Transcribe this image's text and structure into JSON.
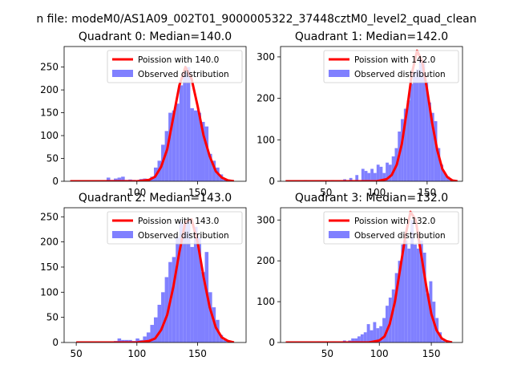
{
  "suptitle": "n file: modeM0/AS1A09_002T01_9000005322_37448cztM0_level2_quad_clean",
  "colors": {
    "poisson": "#ff0000",
    "observed": "#8080ff"
  },
  "chart_data": [
    {
      "type": "bar",
      "title": "Quadrant 0: Median=140.0",
      "xlim": [
        40,
        190
      ],
      "ylim": [
        0,
        295
      ],
      "xticks": [
        100,
        150
      ],
      "yticks": [
        0,
        50,
        100,
        150,
        200,
        250
      ],
      "legend_position": "top-right",
      "series": [
        {
          "name": "Poission with 140.0",
          "kind": "line",
          "mean": 140,
          "x": [
            45,
            100,
            110,
            115,
            120,
            125,
            130,
            135,
            140,
            145,
            150,
            155,
            160,
            165,
            170,
            175,
            180
          ],
          "y": [
            0,
            0,
            3,
            10,
            32,
            70,
            140,
            210,
            250,
            225,
            165,
            100,
            55,
            22,
            8,
            2,
            0
          ]
        },
        {
          "name": "Observed distribution",
          "kind": "hist",
          "bin_width": 3,
          "x": [
            63,
            66,
            75,
            78,
            81,
            84,
            87,
            90,
            93,
            96,
            99,
            102,
            105,
            108,
            111,
            114,
            117,
            120,
            123,
            126,
            129,
            132,
            135,
            138,
            141,
            144,
            147,
            150,
            153,
            156,
            159,
            162,
            165,
            168,
            171,
            174
          ],
          "y": [
            2,
            2,
            8,
            3,
            6,
            8,
            10,
            3,
            4,
            3,
            2,
            5,
            6,
            4,
            10,
            30,
            45,
            80,
            110,
            150,
            155,
            170,
            210,
            240,
            250,
            160,
            155,
            150,
            130,
            120,
            60,
            45,
            30,
            15,
            5,
            2
          ]
        }
      ]
    },
    {
      "type": "bar",
      "title": "Quadrant 1: Median=142.0",
      "xlim": [
        5,
        185
      ],
      "ylim": [
        0,
        325
      ],
      "xticks": [
        50,
        100,
        150
      ],
      "yticks": [
        0,
        100,
        200,
        300
      ],
      "legend_position": "top-right",
      "series": [
        {
          "name": "Poission with 142.0",
          "kind": "line",
          "mean": 142,
          "x": [
            10,
            100,
            110,
            115,
            120,
            125,
            130,
            135,
            140,
            145,
            150,
            155,
            160,
            165,
            170,
            175,
            180
          ],
          "y": [
            0,
            0,
            5,
            15,
            40,
            90,
            170,
            260,
            315,
            290,
            220,
            140,
            75,
            30,
            10,
            2,
            0
          ]
        },
        {
          "name": "Observed distribution",
          "kind": "hist",
          "bin_width": 3,
          "x": [
            28,
            55,
            67,
            73,
            79,
            85,
            88,
            91,
            94,
            97,
            100,
            103,
            106,
            109,
            112,
            115,
            118,
            121,
            124,
            127,
            130,
            133,
            136,
            139,
            142,
            145,
            148,
            151,
            154,
            157,
            160,
            163,
            166,
            169,
            172
          ],
          "y": [
            3,
            3,
            5,
            8,
            15,
            30,
            25,
            20,
            30,
            20,
            40,
            35,
            20,
            45,
            40,
            60,
            80,
            120,
            150,
            175,
            195,
            235,
            265,
            270,
            295,
            290,
            240,
            190,
            165,
            145,
            80,
            40,
            20,
            12,
            4
          ]
        }
      ]
    },
    {
      "type": "bar",
      "title": "Quadrant 2: Median=143.0",
      "xlim": [
        40,
        190
      ],
      "ylim": [
        0,
        268
      ],
      "xticks": [
        50,
        100,
        150
      ],
      "yticks": [
        0,
        50,
        100,
        150,
        200,
        250
      ],
      "legend_position": "top-right",
      "series": [
        {
          "name": "Poission with 143.0",
          "kind": "line",
          "mean": 143,
          "x": [
            50,
            100,
            110,
            115,
            120,
            125,
            130,
            135,
            140,
            145,
            150,
            155,
            160,
            165,
            170,
            175,
            180
          ],
          "y": [
            0,
            0,
            3,
            8,
            25,
            55,
            110,
            180,
            240,
            245,
            200,
            130,
            70,
            30,
            10,
            3,
            0
          ]
        },
        {
          "name": "Observed distribution",
          "kind": "hist",
          "bin_width": 3,
          "x": [
            57,
            75,
            81,
            84,
            87,
            90,
            93,
            96,
            99,
            102,
            105,
            108,
            111,
            114,
            117,
            120,
            123,
            126,
            129,
            132,
            135,
            138,
            141,
            144,
            147,
            150,
            153,
            156,
            159,
            162,
            165,
            168,
            171
          ],
          "y": [
            2,
            2,
            3,
            8,
            5,
            5,
            5,
            3,
            8,
            5,
            12,
            20,
            35,
            50,
            75,
            100,
            130,
            160,
            170,
            210,
            240,
            235,
            245,
            190,
            230,
            210,
            140,
            180,
            100,
            70,
            45,
            15,
            5
          ]
        }
      ]
    },
    {
      "type": "bar",
      "title": "Quadrant 3: Median=132.0",
      "xlim": [
        5,
        180
      ],
      "ylim": [
        0,
        330
      ],
      "xticks": [
        50,
        100,
        150
      ],
      "yticks": [
        0,
        100,
        200,
        300
      ],
      "legend_position": "top-right",
      "series": [
        {
          "name": "Poission with 132.0",
          "kind": "line",
          "mean": 132,
          "x": [
            10,
            90,
            100,
            105,
            110,
            115,
            120,
            125,
            130,
            135,
            140,
            145,
            150,
            155,
            160,
            165,
            170
          ],
          "y": [
            0,
            0,
            5,
            15,
            45,
            100,
            180,
            260,
            320,
            300,
            220,
            140,
            70,
            30,
            10,
            3,
            0
          ]
        },
        {
          "name": "Observed distribution",
          "kind": "hist",
          "bin_width": 3,
          "x": [
            40,
            55,
            65,
            70,
            73,
            76,
            79,
            82,
            85,
            88,
            91,
            94,
            97,
            100,
            103,
            106,
            109,
            112,
            115,
            118,
            121,
            124,
            127,
            130,
            133,
            136,
            139,
            142,
            145,
            148,
            151,
            154,
            157,
            160
          ],
          "y": [
            3,
            3,
            5,
            5,
            10,
            10,
            15,
            20,
            25,
            45,
            30,
            50,
            35,
            40,
            60,
            90,
            110,
            130,
            170,
            200,
            240,
            250,
            230,
            300,
            240,
            230,
            250,
            220,
            120,
            150,
            100,
            60,
            25,
            5
          ]
        }
      ]
    }
  ]
}
